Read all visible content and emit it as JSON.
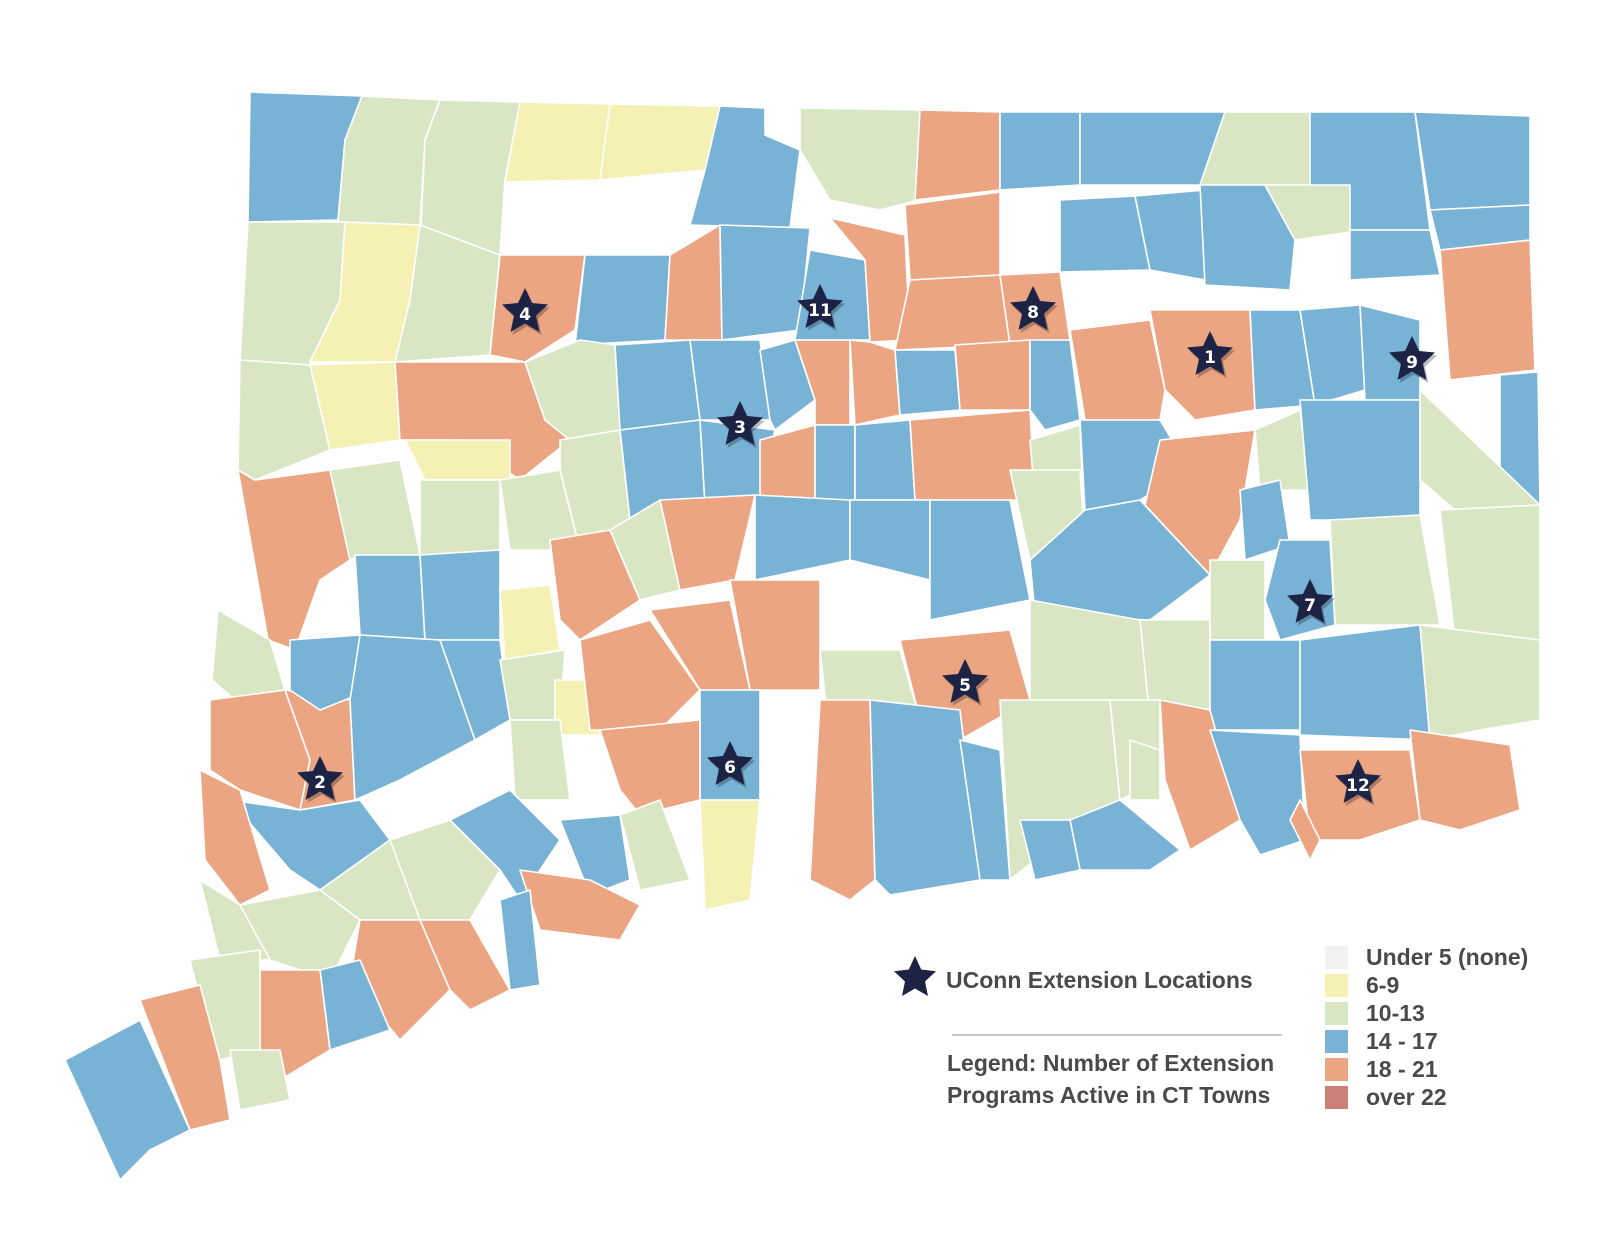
{
  "colors": {
    "none": "#f2f2f2",
    "c6_9": "#f5f1b4",
    "c10_13": "#d9e6c4",
    "c14_17": "#78b3d6",
    "c18_21": "#eca583",
    "over22": "#cd8077",
    "star": "#1c2344"
  },
  "legend": {
    "locations_label": "UConn Extension Locations",
    "title_line1": "Legend: Number of Extension",
    "title_line2": "Programs Active in CT Towns",
    "items": [
      {
        "label": "Under 5 (none)",
        "color": "#f2f2f2"
      },
      {
        "label": "6-9",
        "color": "#f5f1b4"
      },
      {
        "label": "10-13",
        "color": "#d9e6c4"
      },
      {
        "label": "14 - 17",
        "color": "#78b3d6"
      },
      {
        "label": "18 - 21",
        "color": "#eca583"
      },
      {
        "label": "over 22",
        "color": "#cd8077"
      }
    ]
  },
  "locations": [
    {
      "label": "1"
    },
    {
      "label": "2"
    },
    {
      "label": "3"
    },
    {
      "label": "4"
    },
    {
      "label": "5"
    },
    {
      "label": "6"
    },
    {
      "label": "7"
    },
    {
      "label": "8"
    },
    {
      "label": "9"
    },
    {
      "label": "11"
    },
    {
      "label": "12"
    }
  ]
}
